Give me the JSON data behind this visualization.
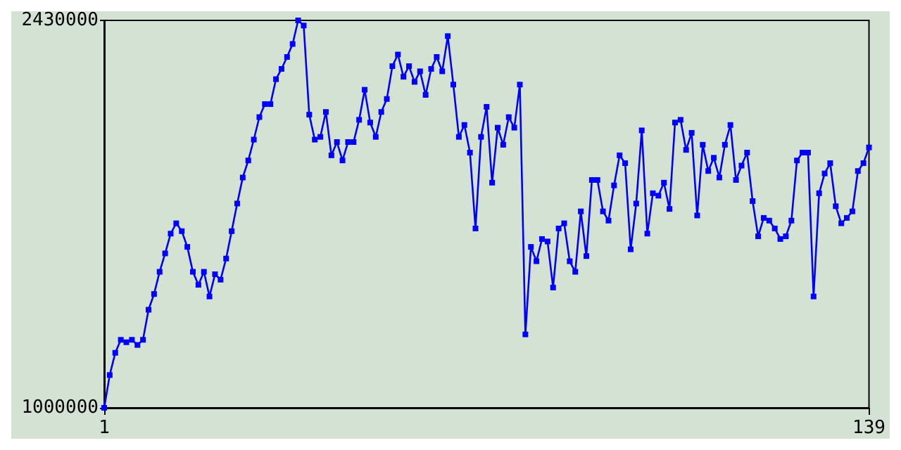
{
  "chart_data": {
    "type": "line",
    "x": [
      1,
      2,
      3,
      4,
      5,
      6,
      7,
      8,
      9,
      10,
      11,
      12,
      13,
      14,
      15,
      16,
      17,
      18,
      19,
      20,
      21,
      22,
      23,
      24,
      25,
      26,
      27,
      28,
      29,
      30,
      31,
      32,
      33,
      34,
      35,
      36,
      37,
      38,
      39,
      40,
      41,
      42,
      43,
      44,
      45,
      46,
      47,
      48,
      49,
      50,
      51,
      52,
      53,
      54,
      55,
      56,
      57,
      58,
      59,
      60,
      61,
      62,
      63,
      64,
      65,
      66,
      67,
      68,
      69,
      70,
      71,
      72,
      73,
      74,
      75,
      76,
      77,
      78,
      79,
      80,
      81,
      82,
      83,
      84,
      85,
      86,
      87,
      88,
      89,
      90,
      91,
      92,
      93,
      94,
      95,
      96,
      97,
      98,
      99,
      100,
      101,
      102,
      103,
      104,
      105,
      106,
      107,
      108,
      109,
      110,
      111,
      112,
      113,
      114,
      115,
      116,
      117,
      118,
      119,
      120,
      121,
      122,
      123,
      124,
      125,
      126,
      127,
      128,
      129,
      130,
      131,
      132,
      133,
      134,
      135,
      136,
      137,
      138,
      139
    ],
    "series": [
      {
        "color": "#0000ff",
        "values": [
          1000000,
          1121000,
          1203000,
          1251000,
          1242000,
          1251000,
          1232000,
          1251000,
          1362000,
          1420000,
          1502000,
          1570000,
          1643000,
          1681000,
          1652000,
          1594000,
          1502000,
          1454000,
          1502000,
          1411000,
          1493000,
          1473000,
          1551000,
          1652000,
          1754000,
          1850000,
          1913000,
          1990000,
          2073000,
          2121000,
          2121000,
          2213000,
          2251000,
          2295000,
          2343000,
          2430000,
          2411000,
          2082000,
          1990000,
          2000000,
          2092000,
          1932000,
          1981000,
          1913000,
          1981000,
          1981000,
          2063000,
          2174000,
          2053000,
          2000000,
          2092000,
          2140000,
          2261000,
          2304000,
          2222000,
          2261000,
          2203000,
          2242000,
          2155000,
          2251000,
          2295000,
          2242000,
          2372000,
          2193000,
          2000000,
          2044000,
          1942000,
          1662000,
          2000000,
          2111000,
          1831000,
          2034000,
          1971000,
          2073000,
          2034000,
          2193000,
          1271000,
          1594000,
          1541000,
          1623000,
          1614000,
          1444000,
          1662000,
          1681000,
          1541000,
          1502000,
          1725000,
          1560000,
          1841000,
          1841000,
          1725000,
          1691000,
          1821000,
          1932000,
          1903000,
          1585000,
          1754000,
          2024000,
          1643000,
          1792000,
          1783000,
          1831000,
          1734000,
          2053000,
          2063000,
          1952000,
          2015000,
          1710000,
          1971000,
          1874000,
          1923000,
          1850000,
          1971000,
          2044000,
          1841000,
          1894000,
          1942000,
          1763000,
          1633000,
          1701000,
          1691000,
          1662000,
          1623000,
          1633000,
          1691000,
          1913000,
          1942000,
          1942000,
          1411000,
          1792000,
          1865000,
          1903000,
          1744000,
          1681000,
          1701000,
          1725000,
          1874000,
          1903000,
          1961000
        ]
      }
    ],
    "xlim": [
      1,
      139
    ],
    "xticks": [
      1,
      139
    ],
    "ylim": [
      1000000,
      2430000
    ],
    "yticks": [
      1000000,
      2430000
    ],
    "grid": false,
    "marker": "square",
    "line_style": "solid"
  }
}
